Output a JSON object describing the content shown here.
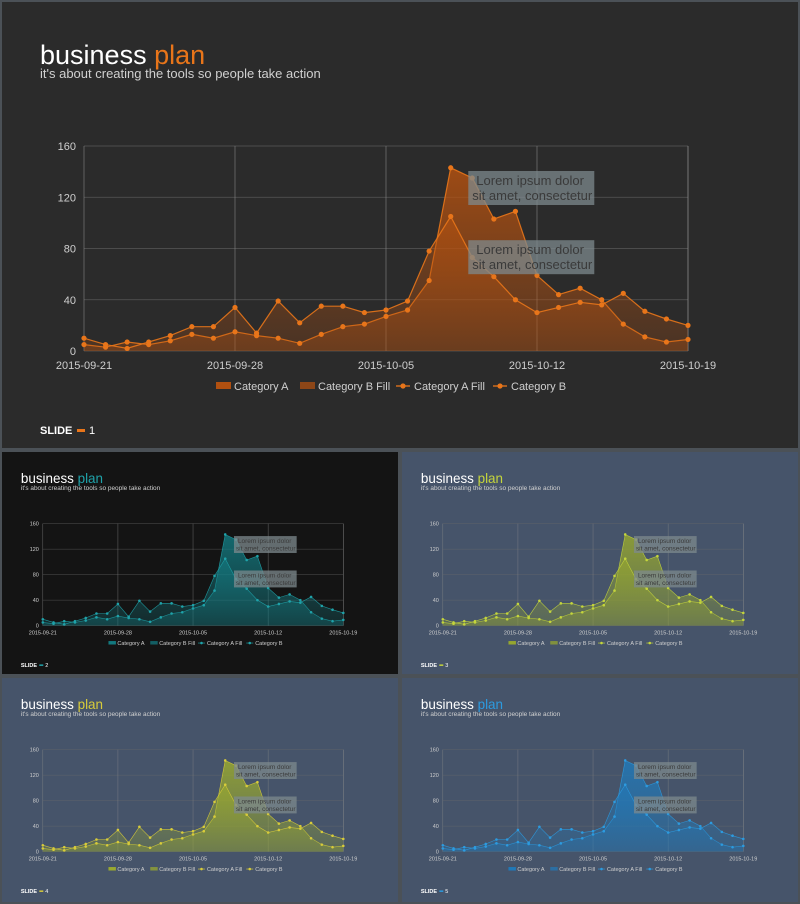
{
  "slides": [
    {
      "title_main": "business",
      "title_accent": "plan",
      "subtitle": "it's about creating the tools so people take action",
      "slide_label": "SLIDE",
      "slide_number": "1",
      "theme": {
        "bg": "#2b2b2b",
        "accent": "#e8751a",
        "fill": "#b8520f"
      }
    },
    {
      "title_main": "business",
      "title_accent": "plan",
      "subtitle": "it's about creating the tools so people take action",
      "slide_label": "SLIDE",
      "slide_number": "2",
      "theme": {
        "bg": "#141414",
        "accent": "#1fa2a9",
        "fill": "#137d84"
      }
    },
    {
      "title_main": "business",
      "title_accent": "plan",
      "subtitle": "it's about creating the tools so people take action",
      "slide_label": "SLIDE",
      "slide_number": "3",
      "theme": {
        "bg": "#46546a",
        "accent": "#c4d53c",
        "fill": "#9aab2c"
      }
    },
    {
      "title_main": "business",
      "title_accent": "plan",
      "subtitle": "it's about creating the tools so people take action",
      "slide_label": "SLIDE",
      "slide_number": "4",
      "theme": {
        "bg": "#46546a",
        "accent": "#d8cc3a",
        "fill": "#9eae2c"
      }
    },
    {
      "title_main": "business",
      "title_accent": "plan",
      "subtitle": "it's about creating the tools so people take action",
      "slide_label": "SLIDE",
      "slide_number": "5",
      "theme": {
        "bg": "#46546a",
        "accent": "#2c9be0",
        "fill": "#1f7bbd"
      }
    }
  ],
  "chart_data": {
    "type": "area",
    "x": [
      "2015-09-21",
      "2015-09-22",
      "2015-09-23",
      "2015-09-24",
      "2015-09-25",
      "2015-09-26",
      "2015-09-27",
      "2015-09-28",
      "2015-09-29",
      "2015-09-30",
      "2015-10-01",
      "2015-10-02",
      "2015-10-03",
      "2015-10-04",
      "2015-10-05",
      "2015-10-06",
      "2015-10-07",
      "2015-10-08",
      "2015-10-09",
      "2015-10-10",
      "2015-10-11",
      "2015-10-12",
      "2015-10-13",
      "2015-10-14",
      "2015-10-15",
      "2015-10-16",
      "2015-10-17",
      "2015-10-18",
      "2015-10-19"
    ],
    "x_ticks": [
      "2015-09-21",
      "2015-09-28",
      "2015-10-05",
      "2015-10-12",
      "2015-10-19"
    ],
    "y_ticks": [
      "0",
      "40",
      "80",
      "120",
      "160"
    ],
    "ylim": [
      0,
      160
    ],
    "series": [
      {
        "name": "Category A Fill",
        "values": [
          5,
          3,
          7,
          5,
          8,
          13,
          10,
          15,
          12,
          10,
          6,
          13,
          19,
          21,
          27,
          32,
          55,
          143,
          135,
          103,
          109,
          59,
          44,
          49,
          40,
          21,
          11,
          7,
          9
        ]
      },
      {
        "name": "Category B",
        "values": [
          10,
          5,
          2,
          7,
          12,
          19,
          19,
          34,
          14,
          39,
          22,
          35,
          35,
          30,
          32,
          39,
          78,
          105,
          73,
          58,
          40,
          30,
          34,
          38,
          36,
          45,
          31,
          25,
          20
        ]
      }
    ],
    "legend": [
      "Category A",
      "Category B Fill",
      "Category A Fill",
      "Category B"
    ],
    "legend_position": "bottom",
    "grid": true,
    "annotations": [
      {
        "line1": "Lorem ipsum dolor",
        "line2": "sit amet, consectetur",
        "x": "2015-10-09",
        "y": 128
      },
      {
        "line1": "Lorem ipsum dolor",
        "line2": "sit amet, consectetur",
        "x": "2015-10-09",
        "y": 74
      }
    ]
  }
}
